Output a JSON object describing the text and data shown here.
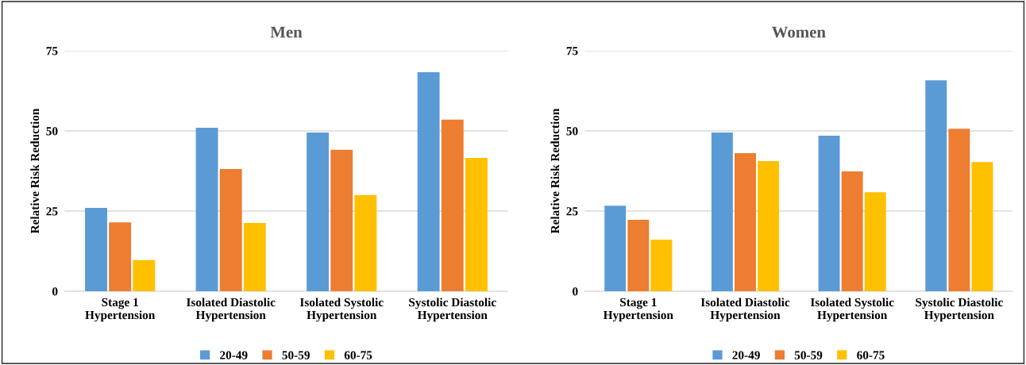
{
  "chart_data": [
    {
      "type": "bar",
      "title": "Men",
      "ylabel": "Relative Risk Reduction",
      "categories": [
        "Stage 1\nHypertension",
        "Isolated Diastolic\nHypertension",
        "Isolated Systolic\nHypertension",
        "Systolic Diastolic\nHypertension"
      ],
      "series": [
        {
          "name": "20-49",
          "color": "#5b9bd5",
          "values": [
            26.0,
            51.0,
            49.5,
            68.3
          ]
        },
        {
          "name": "50-59",
          "color": "#ed7d31",
          "values": [
            21.5,
            38.1,
            44.1,
            53.5
          ]
        },
        {
          "name": "60-75",
          "color": "#ffc000",
          "values": [
            9.7,
            21.3,
            30.0,
            41.6
          ]
        }
      ],
      "ylim": [
        0,
        75
      ],
      "yticks": [
        0,
        25,
        50,
        75
      ],
      "grid": "y",
      "legend": "bottom"
    },
    {
      "type": "bar",
      "title": "Women",
      "ylabel": "Relative Risk Reduction",
      "categories": [
        "Stage 1\nHypertension",
        "Isolated Diastolic\nHypertension",
        "Isolated Systolic\nHypertension",
        "Systolic Diastolic\nHypertension"
      ],
      "series": [
        {
          "name": "20-49",
          "color": "#5b9bd5",
          "values": [
            26.7,
            49.5,
            48.5,
            65.8
          ]
        },
        {
          "name": "50-59",
          "color": "#ed7d31",
          "values": [
            22.3,
            43.1,
            37.4,
            50.7
          ]
        },
        {
          "name": "60-75",
          "color": "#ffc000",
          "values": [
            16.1,
            40.6,
            30.9,
            40.3
          ]
        }
      ],
      "ylim": [
        0,
        75
      ],
      "yticks": [
        0,
        25,
        50,
        75
      ],
      "grid": "y",
      "legend": "bottom"
    }
  ]
}
